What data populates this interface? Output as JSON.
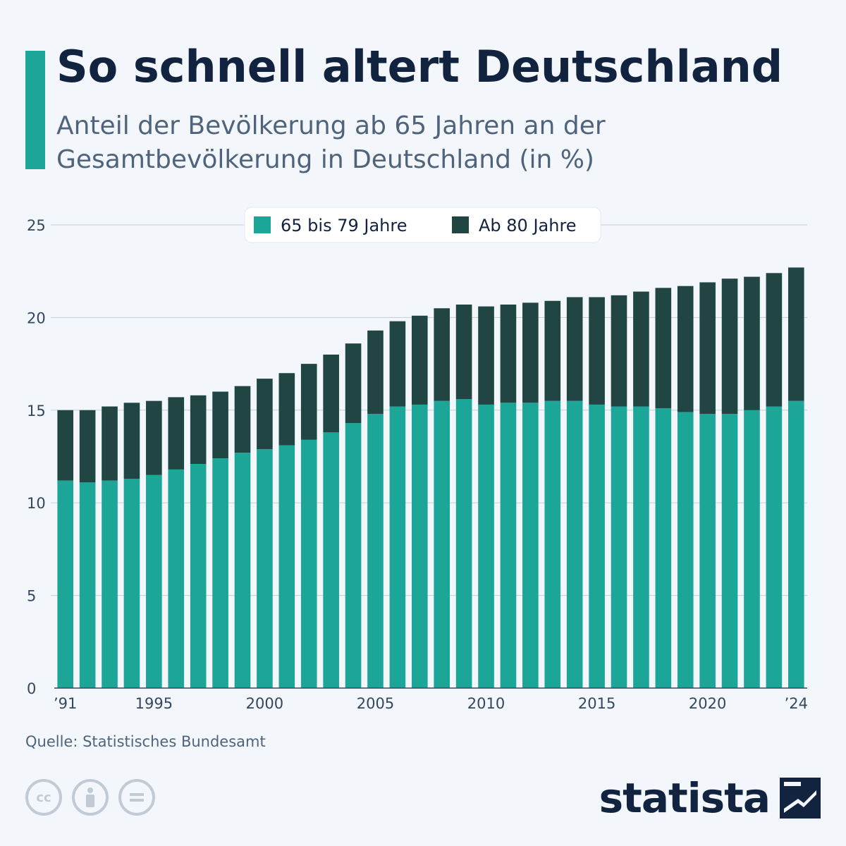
{
  "title": "So schnell altert Deutschland",
  "subtitle_lines": [
    "Anteil der Bevölkerung ab 65 Jahren an der",
    "Gesamtbevölkerung in Deutschland (in %)"
  ],
  "source": "Quelle: Statistisches Bundesamt",
  "brand": "statista",
  "icons": [
    "cc-icon",
    "person-icon",
    "equals-icon"
  ],
  "chart_data": {
    "type": "bar",
    "stacked": true,
    "categories": [
      "1991",
      "1992",
      "1993",
      "1994",
      "1995",
      "1996",
      "1997",
      "1998",
      "1999",
      "2000",
      "2001",
      "2002",
      "2003",
      "2004",
      "2005",
      "2006",
      "2007",
      "2008",
      "2009",
      "2010",
      "2011",
      "2012",
      "2013",
      "2014",
      "2015",
      "2016",
      "2017",
      "2018",
      "2019",
      "2020",
      "2021",
      "2022",
      "2023",
      "2024"
    ],
    "tick_labels": [
      {
        "year": "1991",
        "label": "’91"
      },
      {
        "year": "1995",
        "label": "1995"
      },
      {
        "year": "2000",
        "label": "2000"
      },
      {
        "year": "2005",
        "label": "2005"
      },
      {
        "year": "2010",
        "label": "2010"
      },
      {
        "year": "2015",
        "label": "2015"
      },
      {
        "year": "2020",
        "label": "2020"
      },
      {
        "year": "2024",
        "label": "’24"
      }
    ],
    "series": [
      {
        "name": "65 bis 79 Jahre",
        "color": "#1ba698",
        "values": [
          11.2,
          11.1,
          11.2,
          11.3,
          11.5,
          11.8,
          12.1,
          12.4,
          12.7,
          12.9,
          13.1,
          13.4,
          13.8,
          14.3,
          14.8,
          15.2,
          15.3,
          15.5,
          15.6,
          15.3,
          15.4,
          15.4,
          15.5,
          15.5,
          15.3,
          15.2,
          15.2,
          15.1,
          14.9,
          14.8,
          14.8,
          15.0,
          15.2,
          15.5
        ]
      },
      {
        "name": "Ab 80 Jahre",
        "color": "#204542",
        "values": [
          3.8,
          3.9,
          4.0,
          4.1,
          4.0,
          3.9,
          3.7,
          3.6,
          3.6,
          3.8,
          3.9,
          4.1,
          4.2,
          4.3,
          4.5,
          4.6,
          4.8,
          5.0,
          5.1,
          5.3,
          5.3,
          5.4,
          5.4,
          5.6,
          5.8,
          6.0,
          6.2,
          6.5,
          6.8,
          7.1,
          7.3,
          7.2,
          7.2,
          7.2
        ]
      }
    ],
    "ylim": [
      0,
      25
    ],
    "yticks": [
      0,
      5,
      10,
      15,
      20,
      25
    ],
    "legend_position": "top-center",
    "grid": true
  }
}
